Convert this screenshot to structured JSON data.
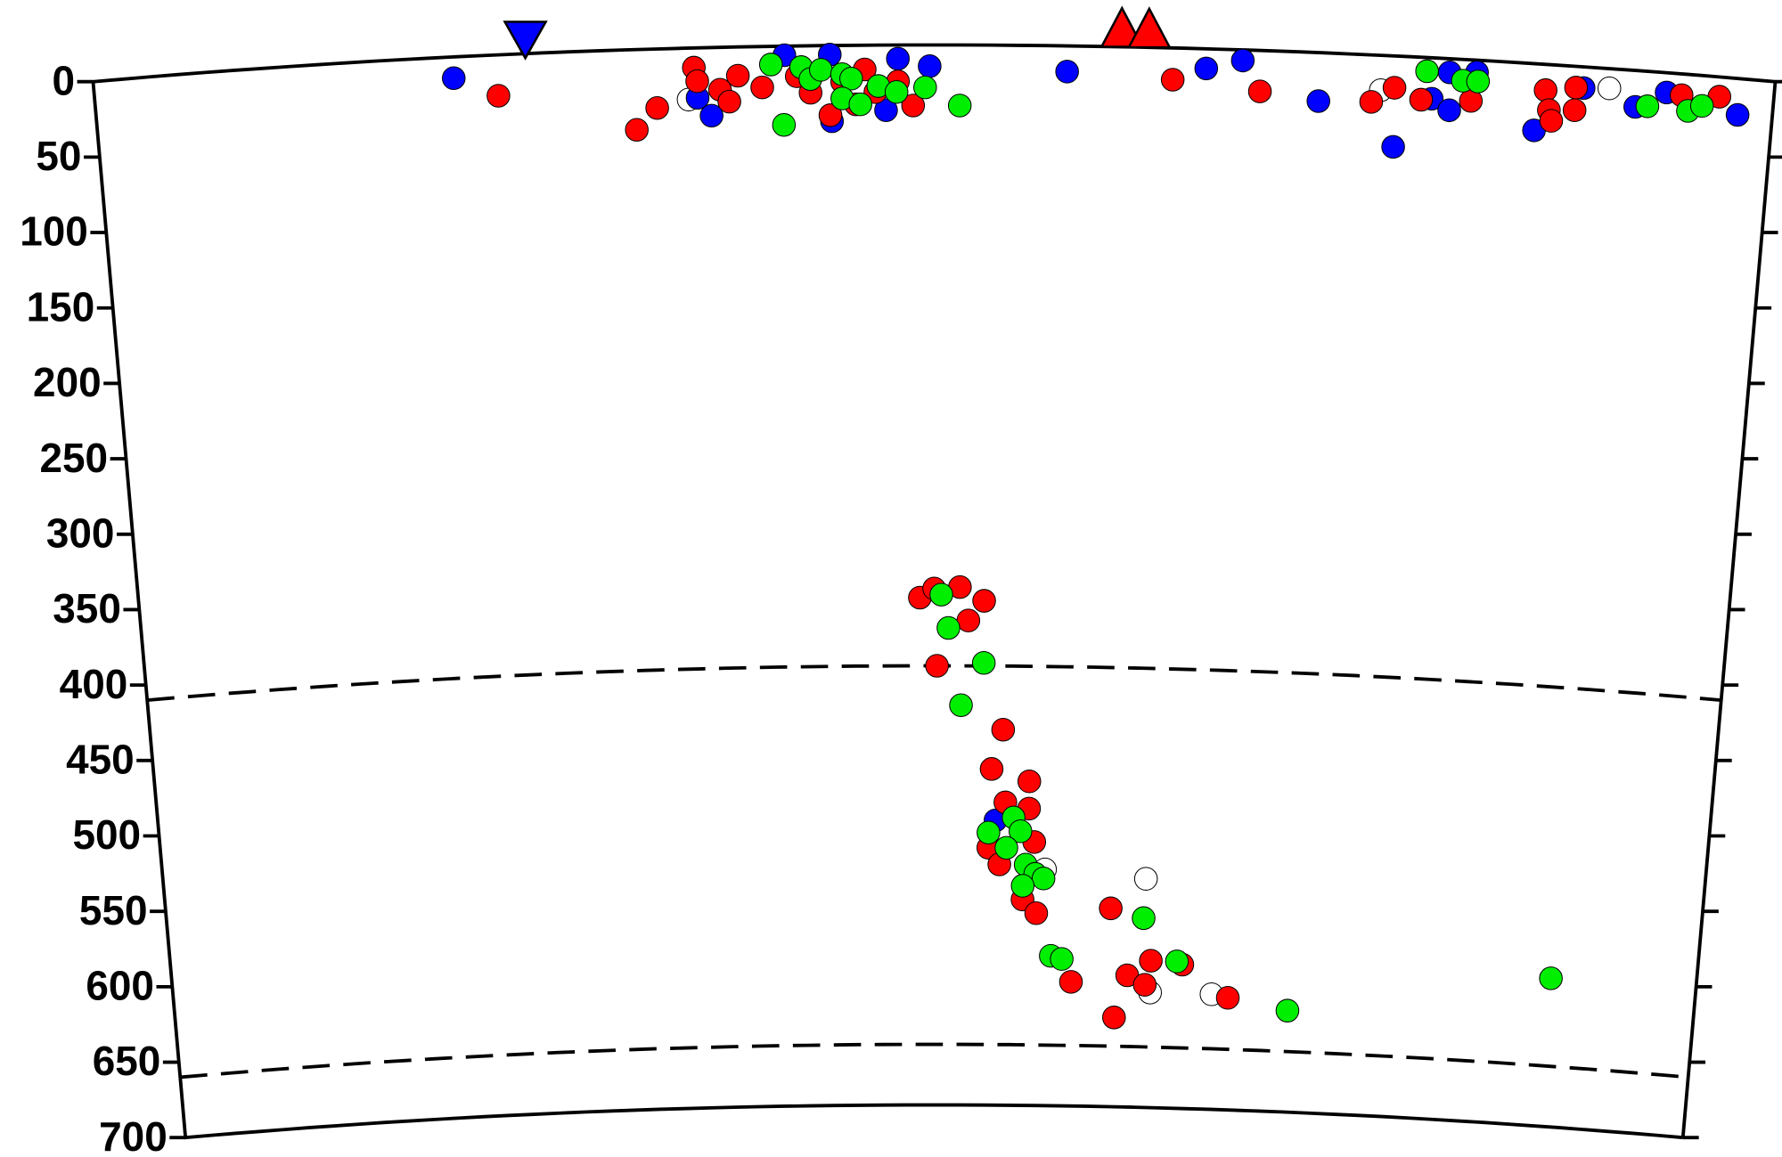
{
  "chart_data": {
    "type": "scatter",
    "xlim": [
      0,
      1112
    ],
    "ylim": [
      0,
      700
    ],
    "yticks": [
      0,
      50,
      100,
      150,
      200,
      250,
      300,
      350,
      400,
      450,
      500,
      550,
      600,
      650,
      700
    ],
    "discontinuities": [
      410,
      660
    ],
    "series": [
      {
        "color": "#ffffff",
        "x": [
          393,
          852,
          1003,
          709,
          714,
          759,
          636
        ],
        "values": [
          34,
          23,
          13,
          549,
          624,
          624,
          544
        ]
      },
      {
        "color": "#0000ff",
        "x": [
          238,
          399,
          408,
          457,
          487,
          488,
          524,
          532,
          553,
          644,
          736,
          760,
          811,
          862,
          886,
          898,
          897,
          915,
          955,
          986,
          1021,
          1041,
          1089,
          600
        ],
        "values": [
          14,
          33,
          45,
          6,
          6,
          50,
          43,
          9,
          14,
          17,
          13,
          7,
          32,
          60,
          27,
          34,
          9,
          8,
          44,
          14,
          24,
          13,
          24,
          512
        ]
      },
      {
        "color": "#ff0000",
        "x": [
          267,
          358,
          372,
          397,
          399,
          414,
          426,
          420,
          442,
          465,
          474,
          487,
          495,
          504,
          510,
          517,
          532,
          542,
          714,
          772,
          846,
          861,
          879,
          912,
          961,
          964,
          966,
          981,
          981,
          1051,
          1076,
          546,
          556,
          574,
          580,
          591,
          558,
          605,
          597,
          624,
          607,
          624,
          595,
          603,
          628,
          620,
          630,
          684,
          697,
          710,
          714,
          656,
          688,
          771,
          737
        ],
        "values": [
          27,
          53,
          39,
          13,
          22,
          28,
          19,
          36,
          27,
          20,
          31,
          46,
          24,
          39,
          16,
          31,
          24,
          40,
          21,
          27,
          31,
          21,
          28,
          27,
          17,
          30,
          37,
          14,
          29,
          14,
          13,
          365,
          359,
          358,
          380,
          367,
          410,
          452,
          478,
          486,
          500,
          504,
          530,
          541,
          526,
          564,
          573,
          569,
          613,
          619,
          603,
          618,
          641,
          626,
          605
        ]
      },
      {
        "color": "#00ee00",
        "x": [
          448,
          456,
          468,
          474,
          481,
          495,
          501,
          495,
          507,
          519,
          531,
          550,
          573,
          882,
          906,
          916,
          1029,
          1056,
          1065,
          561,
          566,
          591,
          575,
          595,
          613,
          618,
          608,
          622,
          629,
          635,
          620,
          641,
          649,
          708,
          733,
          815,
          1006
        ],
        "values": [
          12,
          52,
          14,
          22,
          16,
          19,
          22,
          35,
          39,
          27,
          31,
          28,
          40,
          9,
          14,
          14,
          23,
          24,
          20,
          363,
          385,
          408,
          436,
          520,
          510,
          519,
          530,
          541,
          547,
          550,
          555,
          601,
          603,
          575,
          603,
          633,
          602
        ]
      }
    ],
    "stations": {
      "color": "#0000ff",
      "x": [
        286
      ]
    },
    "volcanoes": {
      "color": "#ff0000",
      "x": [
        680,
        698
      ]
    }
  }
}
